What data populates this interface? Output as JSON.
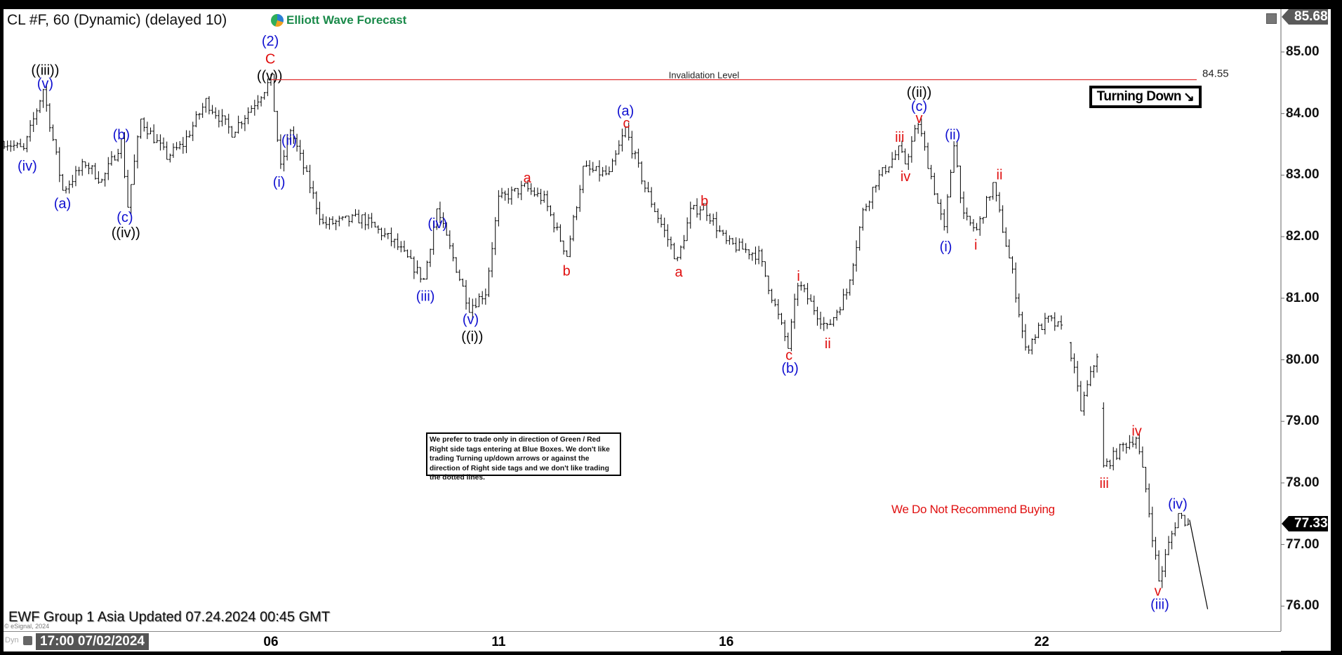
{
  "header": {
    "title": "CL #F, 60 (Dynamic) (delayed 10)",
    "logo_text": "Elliott Wave Forecast"
  },
  "footer": {
    "update_text": "EWF Group 1 Asia Updated 07.24.2024 00:45 GMT",
    "copyright": "© eSignal, 2024",
    "mode": "Dyn",
    "cursor_date": "17:00 07/02/2024"
  },
  "annotations": {
    "disclaimer": "We prefer to trade only in direction of Green / Red Right side tags entering at Blue Boxes. We don't like trading Turning up/down arrows or against the direction of Right side tags and we don't like trading the dotted lines.",
    "turning": "Turning Down",
    "turning_icon": "arrow-down-right",
    "no_recommend": "We Do Not Recommend Buying",
    "invalidation_label": "Invalidation Level",
    "invalidation_value": "84.55"
  },
  "colors": {
    "wave_blue": "#1010d0",
    "wave_red": "#e01010",
    "wave_black": "#000000",
    "invalidation": "#e03030",
    "bars": "#000000"
  },
  "chart_data": {
    "type": "ohlc",
    "symbol": "CL #F",
    "interval": "60",
    "ylim": [
      75.6,
      85.7
    ],
    "yticks": [
      "76.00",
      "77.00",
      "78.00",
      "79.00",
      "80.00",
      "81.00",
      "82.00",
      "83.00",
      "84.00",
      "85.00"
    ],
    "xticks": [
      {
        "label": "06",
        "bar": 82
      },
      {
        "label": "11",
        "bar": 152
      },
      {
        "label": "16",
        "bar": 222
      },
      {
        "label": "22",
        "bar": 319
      }
    ],
    "high_tag": "85.68",
    "last_price": "77.33",
    "invalidation_level": 84.55,
    "price_path": [
      [
        0,
        83.55
      ],
      [
        6,
        83.4
      ],
      [
        12,
        84.4
      ],
      [
        18,
        82.75
      ],
      [
        25,
        83.2
      ],
      [
        30,
        82.9
      ],
      [
        36,
        83.55
      ],
      [
        38,
        82.5
      ],
      [
        42,
        83.9
      ],
      [
        50,
        83.3
      ],
      [
        55,
        83.5
      ],
      [
        62,
        84.2
      ],
      [
        70,
        83.7
      ],
      [
        76,
        84.1
      ],
      [
        82,
        84.55
      ],
      [
        85,
        83.1
      ],
      [
        88,
        83.75
      ],
      [
        98,
        82.2
      ],
      [
        110,
        82.3
      ],
      [
        120,
        81.9
      ],
      [
        129,
        81.3
      ],
      [
        133,
        82.45
      ],
      [
        143,
        80.85
      ],
      [
        148,
        81.1
      ],
      [
        152,
        82.6
      ],
      [
        160,
        82.8
      ],
      [
        166,
        82.6
      ],
      [
        173,
        81.7
      ],
      [
        178,
        83.1
      ],
      [
        186,
        83.0
      ],
      [
        191,
        83.75
      ],
      [
        197,
        82.8
      ],
      [
        207,
        81.6
      ],
      [
        211,
        82.4
      ],
      [
        215,
        82.5
      ],
      [
        222,
        81.9
      ],
      [
        232,
        81.7
      ],
      [
        241,
        80.2
      ],
      [
        244,
        81.25
      ],
      [
        253,
        80.5
      ],
      [
        259,
        81.1
      ],
      [
        264,
        82.4
      ],
      [
        268,
        82.9
      ],
      [
        275,
        83.4
      ],
      [
        277,
        83.2
      ],
      [
        281,
        83.85
      ],
      [
        289,
        82.1
      ],
      [
        292,
        83.55
      ],
      [
        295,
        82.3
      ],
      [
        299,
        82.1
      ],
      [
        304,
        82.85
      ],
      [
        310,
        81.4
      ],
      [
        314,
        80.15
      ],
      [
        318,
        80.5
      ],
      [
        321,
        80.65
      ],
      [
        325,
        80.5
      ],
      [
        328,
        80.1
      ],
      [
        331,
        79.2
      ],
      [
        336,
        80.1
      ],
      [
        338,
        78.25
      ],
      [
        344,
        78.6
      ],
      [
        348,
        78.75
      ],
      [
        351,
        77.9
      ],
      [
        355,
        76.4
      ],
      [
        358,
        77.0
      ],
      [
        361,
        77.5
      ],
      [
        364,
        77.33
      ]
    ],
    "projection": [
      [
        364,
        77.4
      ],
      [
        370,
        75.95
      ]
    ],
    "wave_labels": [
      {
        "text": "((iii))",
        "bar": 12.6,
        "price": 84.71,
        "color": "black"
      },
      {
        "text": "(v)",
        "bar": 12.6,
        "price": 84.49,
        "color": "blue"
      },
      {
        "text": "(iv)",
        "bar": 7.1,
        "price": 83.15,
        "color": "blue"
      },
      {
        "text": "(a)",
        "bar": 17.9,
        "price": 82.54,
        "color": "blue"
      },
      {
        "text": "(b)",
        "bar": 36,
        "price": 83.66,
        "color": "blue"
      },
      {
        "text": "(c)",
        "bar": 37.1,
        "price": 82.32,
        "color": "blue"
      },
      {
        "text": "((iv))",
        "bar": 37.4,
        "price": 82.07,
        "color": "black"
      },
      {
        "text": "(2)",
        "bar": 81.8,
        "price": 85.18,
        "color": "blue"
      },
      {
        "text": "C",
        "bar": 81.8,
        "price": 84.89,
        "color": "red"
      },
      {
        "text": "((v))",
        "bar": 81.6,
        "price": 84.62,
        "color": "black"
      },
      {
        "text": "(ii)",
        "bar": 87.6,
        "price": 83.57,
        "color": "blue"
      },
      {
        "text": "(i)",
        "bar": 84.5,
        "price": 82.89,
        "color": "blue"
      },
      {
        "text": "(iv)",
        "bar": 133.2,
        "price": 82.22,
        "color": "blue"
      },
      {
        "text": "(iii)",
        "bar": 129.5,
        "price": 81.04,
        "color": "blue"
      },
      {
        "text": "(v)",
        "bar": 143.4,
        "price": 80.66,
        "color": "blue"
      },
      {
        "text": "((i))",
        "bar": 143.9,
        "price": 80.38,
        "color": "black"
      },
      {
        "text": "a",
        "bar": 160.8,
        "price": 82.96,
        "color": "red"
      },
      {
        "text": "b",
        "bar": 172.9,
        "price": 81.45,
        "color": "red"
      },
      {
        "text": "(a)",
        "bar": 191,
        "price": 84.05,
        "color": "blue"
      },
      {
        "text": "c",
        "bar": 191.3,
        "price": 83.85,
        "color": "red"
      },
      {
        "text": "a",
        "bar": 207.4,
        "price": 81.43,
        "color": "red"
      },
      {
        "text": "b",
        "bar": 215.3,
        "price": 82.58,
        "color": "red"
      },
      {
        "text": "i",
        "bar": 244.2,
        "price": 81.36,
        "color": "red"
      },
      {
        "text": "c",
        "bar": 241.3,
        "price": 80.08,
        "color": "red"
      },
      {
        "text": "(b)",
        "bar": 241.6,
        "price": 79.87,
        "color": "blue"
      },
      {
        "text": "ii",
        "bar": 253.2,
        "price": 80.27,
        "color": "red"
      },
      {
        "text": "iii",
        "bar": 275.3,
        "price": 83.62,
        "color": "red"
      },
      {
        "text": "iv",
        "bar": 277.1,
        "price": 82.98,
        "color": "red"
      },
      {
        "text": "((ii))",
        "bar": 281.3,
        "price": 84.35,
        "color": "black"
      },
      {
        "text": "(c)",
        "bar": 281.3,
        "price": 84.12,
        "color": "blue"
      },
      {
        "text": "v",
        "bar": 281.3,
        "price": 83.93,
        "color": "red"
      },
      {
        "text": "(ii)",
        "bar": 291.6,
        "price": 83.66,
        "color": "blue"
      },
      {
        "text": "(i)",
        "bar": 289.5,
        "price": 81.84,
        "color": "blue"
      },
      {
        "text": "i",
        "bar": 298.7,
        "price": 81.87,
        "color": "red"
      },
      {
        "text": "ii",
        "bar": 306,
        "price": 83.01,
        "color": "red"
      },
      {
        "text": "iii",
        "bar": 338.2,
        "price": 78.0,
        "color": "red"
      },
      {
        "text": "iv",
        "bar": 348.2,
        "price": 78.85,
        "color": "red"
      },
      {
        "text": "(iv)",
        "bar": 360.8,
        "price": 77.66,
        "color": "blue"
      },
      {
        "text": "v",
        "bar": 354.7,
        "price": 76.25,
        "color": "red"
      },
      {
        "text": "(iii)",
        "bar": 355.3,
        "price": 76.03,
        "color": "blue"
      }
    ]
  }
}
